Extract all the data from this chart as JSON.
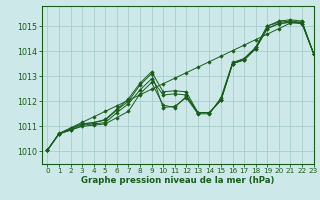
{
  "background_color": "#cce8e8",
  "grid_color": "#aacccc",
  "line_color": "#1a5c1a",
  "marker_color": "#1a5c1a",
  "xlabel": "Graphe pression niveau de la mer (hPa)",
  "xlim": [
    -0.5,
    23
  ],
  "ylim": [
    1009.5,
    1015.8
  ],
  "yticks": [
    1010,
    1011,
    1012,
    1013,
    1014,
    1015
  ],
  "xticks": [
    0,
    1,
    2,
    3,
    4,
    5,
    6,
    7,
    8,
    9,
    10,
    11,
    12,
    13,
    14,
    15,
    16,
    17,
    18,
    19,
    20,
    21,
    22,
    23
  ],
  "series": [
    [
      1010.05,
      1010.7,
      1010.85,
      1011.0,
      1011.05,
      1011.1,
      1011.35,
      1011.6,
      1012.3,
      1012.75,
      1011.85,
      1011.75,
      1012.2,
      1011.55,
      1011.55,
      1012.05,
      1013.5,
      1013.65,
      1014.1,
      1014.9,
      1015.1,
      1015.15,
      1015.1,
      1013.9
    ],
    [
      1010.05,
      1010.7,
      1010.85,
      1011.05,
      1011.1,
      1011.15,
      1011.55,
      1011.9,
      1012.45,
      1012.9,
      1012.25,
      1012.3,
      1012.25,
      1011.55,
      1011.55,
      1012.05,
      1013.5,
      1013.65,
      1014.1,
      1014.9,
      1015.1,
      1015.15,
      1015.1,
      1013.9
    ],
    [
      1010.05,
      1010.7,
      1010.9,
      1011.1,
      1011.15,
      1011.25,
      1011.65,
      1012.0,
      1012.65,
      1013.1,
      1011.75,
      1011.8,
      1012.15,
      1011.5,
      1011.5,
      1012.15,
      1013.55,
      1013.7,
      1014.15,
      1015.0,
      1015.15,
      1015.2,
      1015.15,
      1013.9
    ],
    [
      1010.05,
      1010.7,
      1010.9,
      1011.1,
      1011.15,
      1011.28,
      1011.68,
      1012.1,
      1012.72,
      1013.18,
      1012.38,
      1012.42,
      1012.38,
      1011.55,
      1011.55,
      1012.05,
      1013.5,
      1013.7,
      1014.15,
      1015.0,
      1015.2,
      1015.25,
      1015.2,
      1013.9
    ],
    [
      1010.05,
      1010.72,
      1010.94,
      1011.16,
      1011.38,
      1011.6,
      1011.82,
      1012.04,
      1012.26,
      1012.48,
      1012.7,
      1012.92,
      1013.14,
      1013.36,
      1013.58,
      1013.8,
      1014.02,
      1014.24,
      1014.46,
      1014.68,
      1014.9,
      1015.12,
      1015.15,
      1013.9
    ]
  ]
}
